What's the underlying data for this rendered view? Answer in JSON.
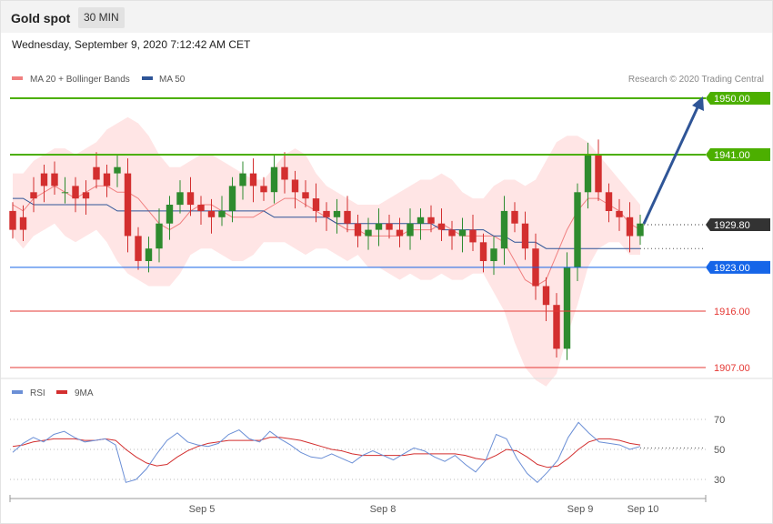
{
  "header": {
    "title": "Gold spot",
    "timeframe": "30 MIN"
  },
  "date_line": "Wednesday, September 9, 2020 7:12:42 AM CET",
  "legend": {
    "ma20_label": "MA 20 + Bollinger Bands",
    "ma50_label": "MA 50",
    "credit": "Research © 2020 Trading Central"
  },
  "rsi_legend": {
    "rsi_label": "RSI",
    "ma_label": "9MA"
  },
  "colors": {
    "ma20": "#f08080",
    "ma50": "#2f5597",
    "green_level": "#4caf00",
    "blue_level": "#1565e8",
    "red_level": "#e53935",
    "up_candle": "#2e8b2e",
    "down_candle": "#d32f2f",
    "band_fill": "#ffe0e0",
    "rsi": "#6b8fd6",
    "rsi_ma": "#d32f2f",
    "arrow": "#2f5597"
  },
  "chart_data": [
    {
      "type": "candlestick",
      "title": "Gold spot",
      "timeframe": "30 MIN",
      "ylim": [
        1904,
        1952
      ],
      "x_tick_labels": [
        "Sep 5",
        "Sep 8",
        "Sep 9",
        "Sep 10"
      ],
      "levels": [
        {
          "value": 1950.0,
          "label": "1950.00",
          "kind": "resistance"
        },
        {
          "value": 1941.0,
          "label": "1941.00",
          "kind": "resistance"
        },
        {
          "value": 1929.8,
          "label": "1929.80",
          "kind": "last"
        },
        {
          "value": 1923.0,
          "label": "1923.00",
          "kind": "pivot"
        },
        {
          "value": 1916.0,
          "label": "1916.00",
          "kind": "support"
        },
        {
          "value": 1907.0,
          "label": "1907.00",
          "kind": "support"
        }
      ],
      "series": [
        {
          "name": "MA 20 + Bollinger Bands",
          "type": "line+band",
          "values": [
            1933,
            1932,
            1934,
            1935,
            1936,
            1935,
            1934,
            1935,
            1936,
            1936,
            1935,
            1935,
            1934,
            1932,
            1930,
            1929,
            1930,
            1932,
            1933,
            1933,
            1932,
            1931,
            1931,
            1931,
            1932,
            1933,
            1934,
            1934,
            1933,
            1932,
            1931,
            1930,
            1929,
            1929,
            1928,
            1928,
            1928,
            1928,
            1929,
            1929,
            1929,
            1930,
            1929,
            1928,
            1928,
            1928,
            1928,
            1927,
            1924,
            1921,
            1920,
            1921,
            1925,
            1929,
            1932,
            1934,
            1934,
            1933,
            1932,
            1930,
            1929
          ],
          "upper": [
            1938,
            1938,
            1940,
            1941,
            1942,
            1942,
            1941,
            1942,
            1943,
            1945,
            1946,
            1947,
            1946,
            1944,
            1941,
            1939,
            1939,
            1940,
            1941,
            1941,
            1940,
            1939,
            1938,
            1937,
            1937,
            1939,
            1941,
            1942,
            1941,
            1938,
            1936,
            1935,
            1934,
            1933,
            1933,
            1933,
            1934,
            1935,
            1936,
            1937,
            1937,
            1938,
            1937,
            1935,
            1934,
            1934,
            1936,
            1937,
            1937,
            1936,
            1937,
            1940,
            1943,
            1944,
            1944,
            1943,
            1941,
            1939,
            1937,
            1935,
            1933
          ],
          "lower": [
            1928,
            1926,
            1928,
            1929,
            1930,
            1928,
            1927,
            1928,
            1929,
            1927,
            1924,
            1922,
            1921,
            1920,
            1920,
            1920,
            1922,
            1925,
            1926,
            1926,
            1925,
            1924,
            1924,
            1925,
            1927,
            1927,
            1927,
            1926,
            1925,
            1926,
            1926,
            1925,
            1924,
            1925,
            1923,
            1923,
            1922,
            1921,
            1922,
            1921,
            1921,
            1922,
            1921,
            1921,
            1922,
            1922,
            1919,
            1916,
            1911,
            1907,
            1905,
            1904,
            1906,
            1912,
            1917,
            1923,
            1926,
            1927,
            1927,
            1925,
            1925
          ]
        },
        {
          "name": "MA 50",
          "type": "line",
          "values": [
            1934,
            1934,
            1933,
            1933,
            1933,
            1933,
            1933,
            1933,
            1933,
            1933,
            1932,
            1932,
            1932,
            1932,
            1932,
            1932,
            1932,
            1932,
            1932,
            1932,
            1932,
            1932,
            1932,
            1932,
            1932,
            1931,
            1931,
            1931,
            1931,
            1931,
            1931,
            1930,
            1930,
            1930,
            1930,
            1930,
            1930,
            1930,
            1930,
            1930,
            1930,
            1929,
            1929,
            1929,
            1929,
            1929,
            1928,
            1928,
            1927,
            1927,
            1927,
            1926,
            1926,
            1926,
            1926,
            1926,
            1926,
            1926,
            1926,
            1926,
            1926
          ]
        }
      ],
      "candles": [
        [
          1932,
          1929
        ],
        [
          1931,
          1929
        ],
        [
          1935,
          1934
        ],
        [
          1938,
          1936
        ],
        [
          1938,
          1936
        ],
        [
          1935,
          1935
        ],
        [
          1936,
          1934
        ],
        [
          1935,
          1934
        ],
        [
          1939,
          1937
        ],
        [
          1938,
          1936
        ],
        [
          1938,
          1939
        ],
        [
          1938,
          1928
        ],
        [
          1928,
          1924
        ],
        [
          1924,
          1926
        ],
        [
          1926,
          1930
        ],
        [
          1930,
          1933
        ],
        [
          1933,
          1935
        ],
        [
          1935,
          1933
        ],
        [
          1933,
          1932
        ],
        [
          1932,
          1931
        ],
        [
          1931,
          1932
        ],
        [
          1932,
          1936
        ],
        [
          1936,
          1938
        ],
        [
          1938,
          1936
        ],
        [
          1936,
          1935
        ],
        [
          1935,
          1939
        ],
        [
          1939,
          1937
        ],
        [
          1937,
          1935
        ],
        [
          1935,
          1934
        ],
        [
          1934,
          1932
        ],
        [
          1932,
          1931
        ],
        [
          1931,
          1932
        ],
        [
          1932,
          1930
        ],
        [
          1930,
          1928
        ],
        [
          1928,
          1929
        ],
        [
          1929,
          1930
        ],
        [
          1930,
          1929
        ],
        [
          1929,
          1928
        ],
        [
          1928,
          1930
        ],
        [
          1930,
          1931
        ],
        [
          1931,
          1930
        ],
        [
          1930,
          1929
        ],
        [
          1929,
          1928
        ],
        [
          1928,
          1929
        ],
        [
          1929,
          1927
        ],
        [
          1927,
          1924
        ],
        [
          1924,
          1926
        ],
        [
          1926,
          1932
        ],
        [
          1932,
          1930
        ],
        [
          1930,
          1926
        ],
        [
          1926,
          1920
        ],
        [
          1920,
          1917
        ],
        [
          1917,
          1910
        ],
        [
          1910,
          1923
        ],
        [
          1923,
          1935
        ],
        [
          1935,
          1941
        ],
        [
          1941,
          1935
        ],
        [
          1935,
          1932
        ],
        [
          1932,
          1931
        ],
        [
          1931,
          1928
        ],
        [
          1928,
          1930
        ]
      ]
    },
    {
      "type": "line",
      "title": "RSI",
      "ylim": [
        20,
        80
      ],
      "y_tick_labels": [
        "70",
        "50",
        "30"
      ],
      "series": [
        {
          "name": "RSI",
          "values": [
            48,
            54,
            58,
            55,
            60,
            62,
            58,
            55,
            56,
            57,
            53,
            28,
            30,
            37,
            47,
            56,
            61,
            55,
            53,
            52,
            54,
            60,
            63,
            57,
            55,
            62,
            57,
            53,
            48,
            45,
            44,
            47,
            44,
            41,
            46,
            49,
            46,
            43,
            47,
            51,
            49,
            45,
            42,
            46,
            40,
            35,
            43,
            60,
            57,
            44,
            34,
            28,
            35,
            43,
            58,
            68,
            61,
            55,
            54,
            53,
            50,
            52
          ]
        },
        {
          "name": "9MA",
          "values": [
            52,
            53,
            55,
            56,
            57,
            57,
            57,
            56,
            56,
            57,
            56,
            50,
            45,
            41,
            39,
            40,
            45,
            49,
            52,
            54,
            55,
            56,
            56,
            56,
            56,
            58,
            58,
            57,
            56,
            54,
            52,
            50,
            49,
            47,
            46,
            46,
            46,
            46,
            46,
            47,
            47,
            47,
            47,
            47,
            46,
            44,
            43,
            46,
            50,
            49,
            45,
            40,
            38,
            39,
            44,
            50,
            55,
            57,
            57,
            56,
            54,
            53
          ]
        }
      ]
    }
  ]
}
